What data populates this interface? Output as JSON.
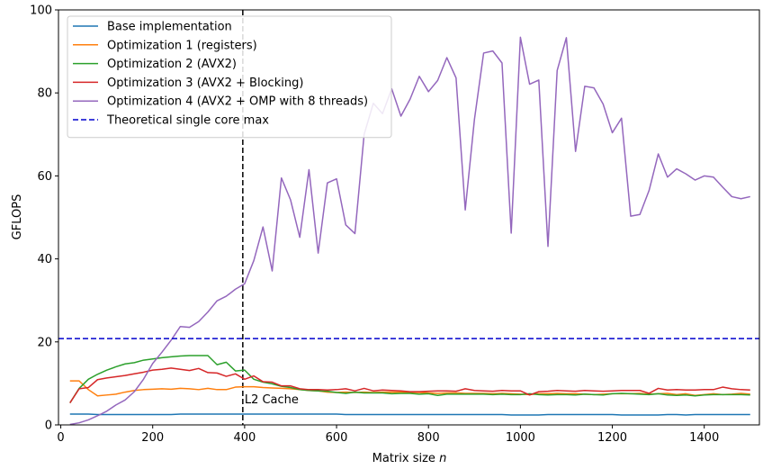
{
  "chart_data": {
    "type": "line",
    "xlabel": "Matrix size",
    "xlabel_var": "n",
    "ylabel": "GFLOPS",
    "xlim": [
      -5,
      1520
    ],
    "ylim": [
      0,
      100
    ],
    "xticks": [
      0,
      200,
      400,
      600,
      800,
      1000,
      1200,
      1400
    ],
    "yticks": [
      0,
      20,
      40,
      60,
      80,
      100
    ],
    "grid": false,
    "legend_position": "top-left",
    "x": [
      20,
      40,
      60,
      80,
      100,
      120,
      140,
      160,
      180,
      200,
      220,
      240,
      260,
      280,
      300,
      320,
      340,
      360,
      380,
      400,
      420,
      440,
      460,
      480,
      500,
      520,
      540,
      560,
      580,
      600,
      620,
      640,
      660,
      680,
      700,
      720,
      740,
      760,
      780,
      800,
      820,
      840,
      860,
      880,
      900,
      920,
      940,
      960,
      980,
      1000,
      1020,
      1040,
      1060,
      1080,
      1100,
      1120,
      1140,
      1160,
      1180,
      1200,
      1220,
      1240,
      1260,
      1280,
      1300,
      1320,
      1340,
      1360,
      1380,
      1400,
      1420,
      1440,
      1460,
      1480,
      1500
    ],
    "series": [
      {
        "name": "Base implementation",
        "color": "#1f77b4",
        "style": "solid",
        "values": [
          2.6,
          2.6,
          2.6,
          2.5,
          2.5,
          2.5,
          2.5,
          2.5,
          2.5,
          2.5,
          2.5,
          2.5,
          2.6,
          2.6,
          2.6,
          2.6,
          2.6,
          2.6,
          2.6,
          2.6,
          2.6,
          2.6,
          2.6,
          2.6,
          2.6,
          2.6,
          2.6,
          2.6,
          2.6,
          2.6,
          2.5,
          2.5,
          2.5,
          2.5,
          2.5,
          2.5,
          2.5,
          2.5,
          2.5,
          2.5,
          2.5,
          2.5,
          2.5,
          2.5,
          2.5,
          2.5,
          2.5,
          2.5,
          2.4,
          2.4,
          2.4,
          2.4,
          2.5,
          2.5,
          2.5,
          2.5,
          2.5,
          2.5,
          2.5,
          2.5,
          2.4,
          2.4,
          2.4,
          2.4,
          2.4,
          2.5,
          2.5,
          2.4,
          2.5,
          2.5,
          2.5,
          2.5,
          2.5,
          2.5,
          2.5
        ]
      },
      {
        "name": "Optimization 1 (registers)",
        "color": "#ff7f0e",
        "style": "solid",
        "values": [
          10.6,
          10.6,
          8.5,
          7.0,
          7.2,
          7.4,
          7.9,
          8.3,
          8.5,
          8.6,
          8.7,
          8.6,
          8.8,
          8.7,
          8.5,
          8.8,
          8.5,
          8.5,
          9.1,
          9.2,
          9.2,
          9.0,
          8.9,
          8.8,
          8.7,
          8.5,
          8.3,
          8.2,
          7.9,
          7.8,
          7.9,
          7.8,
          7.9,
          7.8,
          7.9,
          7.9,
          7.9,
          7.8,
          7.8,
          7.7,
          7.6,
          7.7,
          7.7,
          7.6,
          7.6,
          7.6,
          7.5,
          7.6,
          7.5,
          7.4,
          7.3,
          7.5,
          7.5,
          7.6,
          7.5,
          7.5,
          7.4,
          7.3,
          7.4,
          7.5,
          7.5,
          7.5,
          7.6,
          7.4,
          7.5,
          7.6,
          7.3,
          7.5,
          7.1,
          7.3,
          7.5,
          7.3,
          7.4,
          7.6,
          7.4
        ]
      },
      {
        "name": "Optimization 2 (AVX2)",
        "color": "#2ca02c",
        "style": "solid",
        "values": [
          5.3,
          8.8,
          11.0,
          12.2,
          13.2,
          14.0,
          14.7,
          15.0,
          15.6,
          15.9,
          16.2,
          16.4,
          16.6,
          16.7,
          16.7,
          16.7,
          14.5,
          15.1,
          13.0,
          13.2,
          11.0,
          10.3,
          9.9,
          9.3,
          9.0,
          8.5,
          8.3,
          8.2,
          8.1,
          7.8,
          7.6,
          7.9,
          7.7,
          7.7,
          7.7,
          7.5,
          7.6,
          7.6,
          7.4,
          7.5,
          7.1,
          7.4,
          7.4,
          7.4,
          7.4,
          7.4,
          7.3,
          7.4,
          7.3,
          7.3,
          7.5,
          7.3,
          7.2,
          7.3,
          7.3,
          7.2,
          7.4,
          7.3,
          7.2,
          7.5,
          7.6,
          7.5,
          7.4,
          7.3,
          7.5,
          7.2,
          7.1,
          7.2,
          7.0,
          7.2,
          7.3,
          7.3,
          7.3,
          7.3,
          7.2
        ]
      },
      {
        "name": "Optimization 3 (AVX2 + Blocking)",
        "color": "#d62728",
        "style": "solid",
        "values": [
          5.3,
          8.7,
          9.0,
          10.9,
          11.3,
          11.6,
          11.9,
          12.3,
          12.7,
          13.2,
          13.4,
          13.7,
          13.4,
          13.1,
          13.6,
          12.6,
          12.5,
          11.7,
          12.3,
          11.0,
          11.8,
          10.4,
          10.3,
          9.4,
          9.4,
          8.7,
          8.5,
          8.5,
          8.4,
          8.5,
          8.7,
          8.2,
          8.8,
          8.2,
          8.4,
          8.3,
          8.2,
          8.0,
          8.0,
          8.1,
          8.2,
          8.2,
          8.1,
          8.7,
          8.3,
          8.2,
          8.1,
          8.3,
          8.2,
          8.2,
          7.2,
          8.0,
          8.1,
          8.3,
          8.2,
          8.1,
          8.3,
          8.2,
          8.1,
          8.2,
          8.3,
          8.3,
          8.3,
          7.6,
          8.8,
          8.4,
          8.5,
          8.4,
          8.4,
          8.5,
          8.5,
          9.1,
          8.7,
          8.5,
          8.4
        ]
      },
      {
        "name": "Optimization 4 (AVX2 + OMP with 8 threads)",
        "color": "#9467bd",
        "style": "solid",
        "values": [
          0.1,
          0.5,
          1.2,
          2.2,
          3.3,
          4.8,
          6.0,
          8.0,
          11.0,
          14.8,
          17.5,
          20.4,
          23.7,
          23.5,
          24.9,
          27.2,
          29.9,
          31.0,
          32.7,
          34.0,
          39.6,
          47.7,
          37.1,
          59.5,
          54.2,
          45.2,
          61.5,
          41.4,
          58.3,
          59.3,
          48.2,
          46.1,
          70.0,
          77.5,
          75.0,
          81.0,
          74.4,
          78.5,
          84.0,
          80.3,
          83.0,
          88.5,
          83.6,
          51.8,
          73.6,
          89.6,
          90.1,
          87.2,
          46.2,
          93.4,
          82.1,
          83.1,
          43.0,
          85.4,
          93.3,
          65.9,
          81.6,
          81.2,
          77.3,
          70.4,
          73.9,
          50.3,
          50.7,
          56.5,
          65.3,
          59.7,
          61.7,
          60.5,
          59.0,
          60.0,
          59.7,
          57.3,
          55.0,
          54.5,
          55.0
        ]
      }
    ],
    "reference_lines": [
      {
        "name": "Theoretical single core max",
        "orientation": "horizontal",
        "value": 20.8,
        "color": "#0000cd",
        "style": "dashed"
      },
      {
        "name": "",
        "label": "L2 Cache",
        "orientation": "vertical",
        "value": 396,
        "color": "#000000",
        "style": "dashed"
      }
    ]
  }
}
